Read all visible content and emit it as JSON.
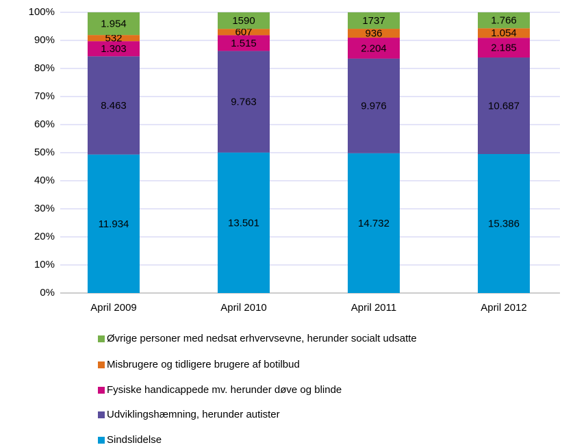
{
  "chart_data": {
    "type": "bar",
    "stacked": "percent",
    "categories": [
      "April 2009",
      "April 2010",
      "April 2011",
      "April 2012"
    ],
    "series": [
      {
        "name": "Sindslidelse",
        "color": "#0099d6",
        "values": [
          11934,
          13501,
          14732,
          15386
        ],
        "value_labels": [
          "11.934",
          "13.501",
          "14.732",
          "15.386"
        ]
      },
      {
        "name": "Udviklingshæmning, herunder autister",
        "color": "#5b4e9c",
        "values": [
          8463,
          9763,
          9976,
          10687
        ],
        "value_labels": [
          "8.463",
          "9.763",
          "9.976",
          "10.687"
        ]
      },
      {
        "name": "Fysiske handicappede mv. herunder døve og blinde",
        "color": "#cc0a7e",
        "values": [
          1303,
          1515,
          2204,
          2185
        ],
        "value_labels": [
          "1.303",
          "1.515",
          "2.204",
          "2.185"
        ]
      },
      {
        "name": "Misbrugere og tidligere brugere af botilbud",
        "color": "#e0701c",
        "values": [
          532,
          607,
          936,
          1054
        ],
        "value_labels": [
          "532",
          "607",
          "936",
          "1.054"
        ]
      },
      {
        "name": "Øvrige personer med nedsat erhvervsevne, herunder socialt udsatte",
        "color": "#77b04a",
        "values": [
          1954,
          1590,
          1737,
          1766
        ],
        "value_labels": [
          "1.954",
          "1590",
          "1737",
          "1.766"
        ]
      }
    ],
    "ylim": [
      0,
      100
    ],
    "yticks": [
      {
        "value": 0,
        "label": "0%"
      },
      {
        "value": 10,
        "label": "10%"
      },
      {
        "value": 20,
        "label": "20%"
      },
      {
        "value": 30,
        "label": "30%"
      },
      {
        "value": 40,
        "label": "40%"
      },
      {
        "value": 50,
        "label": "50%"
      },
      {
        "value": 60,
        "label": "60%"
      },
      {
        "value": 70,
        "label": "70%"
      },
      {
        "value": 80,
        "label": "80%"
      },
      {
        "value": 90,
        "label": "90%"
      },
      {
        "value": 100,
        "label": "100%"
      }
    ],
    "grid": true,
    "legend": "bottom"
  }
}
